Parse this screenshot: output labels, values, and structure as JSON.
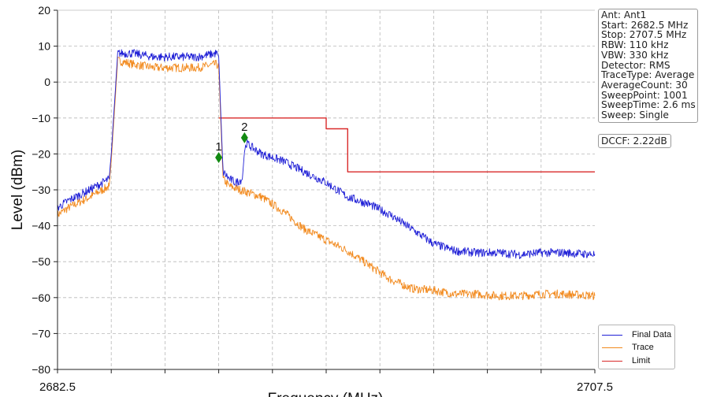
{
  "info": {
    "lines": [
      "Ant: Ant1",
      "Start: 2682.5 MHz",
      "Stop: 2707.5 MHz",
      "RBW: 110 kHz",
      "VBW: 330 kHz",
      "Detector: RMS",
      "TraceType: Average",
      "AverageCount: 30",
      "SweepPoint: 1001",
      "SweepTime: 2.6 ms",
      "Sweep: Single"
    ],
    "dccf": "DCCF: 2.22dB"
  },
  "chart_data": {
    "type": "line",
    "xlabel": "Frequency (MHz)",
    "ylabel": "Level (dBm)",
    "xlim": [
      2682.5,
      2707.5
    ],
    "ylim": [
      -80,
      20
    ],
    "x_tick_labels": [
      "2682.5",
      "2707.5"
    ],
    "y_ticks": [
      20,
      10,
      0,
      -10,
      -20,
      -30,
      -40,
      -50,
      -60,
      -70,
      -80
    ],
    "grid": true,
    "legend_position": "bottom-right",
    "series": [
      {
        "name": "Final Data",
        "color": "#1f1fd6",
        "x": [
          2682.5,
          2683.0,
          2684.0,
          2684.9,
          2685.0,
          2685.3,
          2686.0,
          2687.0,
          2688.0,
          2689.0,
          2689.9,
          2690.0,
          2690.2,
          2690.5,
          2690.8,
          2691.1,
          2691.2,
          2691.3,
          2691.5,
          2692.0,
          2693.0,
          2694.0,
          2695.0,
          2696.0,
          2697.0,
          2698.0,
          2699.0,
          2700.0,
          2701.0,
          2702.0,
          2703.0,
          2704.0,
          2705.0,
          2706.0,
          2707.5
        ],
        "y": [
          -35,
          -33,
          -30,
          -27,
          -20,
          8,
          8,
          7,
          7,
          7,
          8,
          7,
          -25,
          -27,
          -28,
          -27,
          -19,
          -17,
          -18,
          -20,
          -22,
          -25,
          -28,
          -32,
          -34,
          -37,
          -41,
          -45,
          -47,
          -47.5,
          -47.5,
          -48,
          -47.5,
          -47.5,
          -48
        ]
      },
      {
        "name": "Trace",
        "color": "#f28a1e",
        "x": [
          2682.5,
          2683.0,
          2684.0,
          2684.9,
          2685.0,
          2685.3,
          2686.0,
          2687.0,
          2688.0,
          2689.0,
          2689.9,
          2690.0,
          2690.2,
          2690.5,
          2691.0,
          2692.0,
          2693.0,
          2694.0,
          2695.0,
          2696.0,
          2697.0,
          2698.0,
          2699.0,
          2700.0,
          2701.0,
          2702.0,
          2703.0,
          2704.0,
          2705.0,
          2706.0,
          2707.5
        ],
        "y": [
          -37,
          -35,
          -32,
          -29,
          -22,
          6,
          5,
          4,
          4,
          4,
          5,
          4,
          -27,
          -29,
          -30,
          -32,
          -36,
          -41,
          -44,
          -47,
          -51,
          -55,
          -57.5,
          -58,
          -59,
          -59,
          -59.5,
          -59.5,
          -59,
          -59,
          -59.5
        ]
      },
      {
        "name": "Limit",
        "color": "#d92a2a",
        "x": [
          2690.0,
          2695.0,
          2695.0,
          2696.0,
          2696.0,
          2707.5
        ],
        "y": [
          -10,
          -10,
          -13,
          -13,
          -25,
          -25
        ]
      }
    ],
    "markers": [
      {
        "label": "1",
        "x": 2690.0,
        "y": -21,
        "color": "#138a13"
      },
      {
        "label": "2",
        "x": 2691.2,
        "y": -15.5,
        "color": "#138a13"
      }
    ]
  }
}
